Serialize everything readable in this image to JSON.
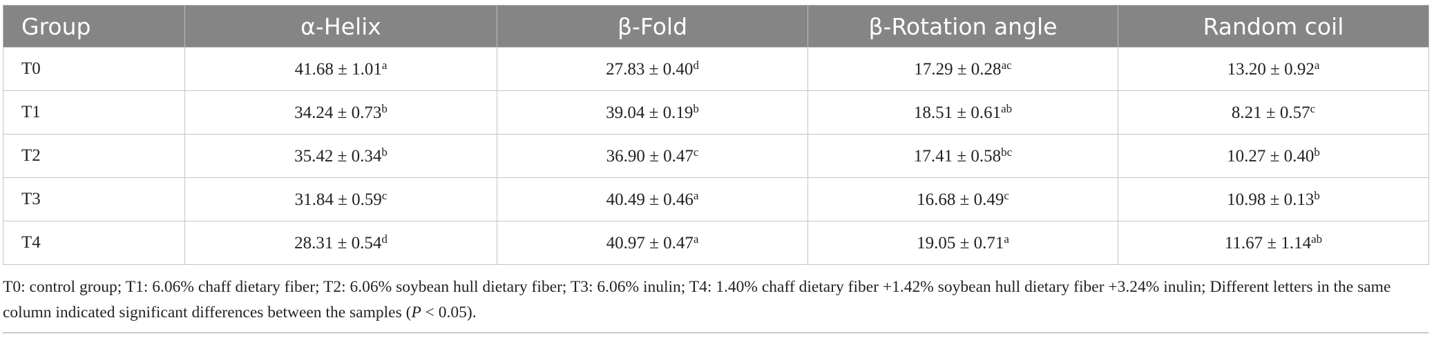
{
  "table": {
    "header": [
      "Group",
      "α-Helix",
      "β-Fold",
      "β-Rotation angle",
      "Random coil"
    ],
    "rows": [
      {
        "group": "T0",
        "cells": [
          {
            "text": "41.68 ± 1.01",
            "sup": "a"
          },
          {
            "text": "27.83 ± 0.40",
            "sup": "d"
          },
          {
            "text": "17.29 ± 0.28",
            "sup": "ac"
          },
          {
            "text": "13.20 ± 0.92",
            "sup": "a"
          }
        ]
      },
      {
        "group": "T1",
        "cells": [
          {
            "text": "34.24 ± 0.73",
            "sup": "b"
          },
          {
            "text": "39.04 ± 0.19",
            "sup": "b"
          },
          {
            "text": "18.51 ± 0.61",
            "sup": "ab"
          },
          {
            "text": "8.21 ± 0.57",
            "sup": "c"
          }
        ]
      },
      {
        "group": "T2",
        "cells": [
          {
            "text": "35.42 ± 0.34",
            "sup": "b"
          },
          {
            "text": "36.90 ± 0.47",
            "sup": "c"
          },
          {
            "text": "17.41 ± 0.58",
            "sup": "bc"
          },
          {
            "text": "10.27 ± 0.40",
            "sup": "b"
          }
        ]
      },
      {
        "group": "T3",
        "cells": [
          {
            "text": "31.84 ± 0.59",
            "sup": "c"
          },
          {
            "text": "40.49 ± 0.46",
            "sup": "a"
          },
          {
            "text": "16.68 ± 0.49",
            "sup": "c"
          },
          {
            "text": "10.98 ± 0.13",
            "sup": "b"
          }
        ]
      },
      {
        "group": "T4",
        "cells": [
          {
            "text": "28.31 ± 0.54",
            "sup": "d"
          },
          {
            "text": "40.97 ± 0.47",
            "sup": "a"
          },
          {
            "text": "19.05 ± 0.71",
            "sup": "a"
          },
          {
            "text": "11.67 ± 1.14",
            "sup": "ab"
          }
        ]
      }
    ]
  },
  "footnote": {
    "parts": [
      "T0: control group; T1: 6.06% chaff dietary fiber; T2: 6.06% soybean hull dietary fiber; T3: 6.06% inulin; T4: 1.40% chaff dietary fiber +1.42% soybean hull dietary fiber +3.24% inulin; Different letters in the same column indicated significant differences between the samples (",
      "P",
      " < 0.05)."
    ]
  }
}
